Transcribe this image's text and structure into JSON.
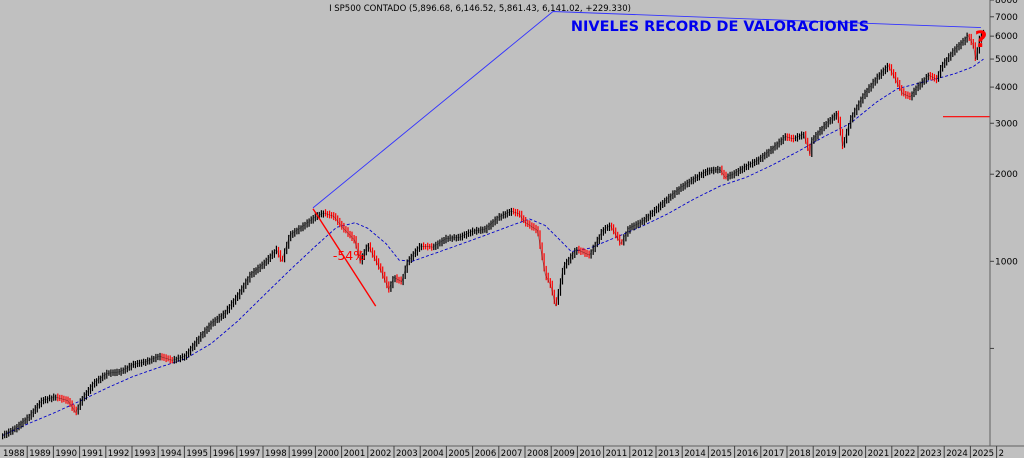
{
  "header": {
    "title": "I SP500 CONTADO (5,896.68, 6,146.52, 5,861.43, 6,141.02, +229.330)"
  },
  "annotations": {
    "headline": "NIVELES RECORD DE VALORACIONES",
    "drawdown": "-54%",
    "question": "?"
  },
  "colors": {
    "background": "#c0c0c0",
    "up_bar": "#000000",
    "down_bar": "#ff0000",
    "moving_average": "#0000cc",
    "trendline": "#3333ff",
    "headline": "#0000ee",
    "annotation_red": "#ff0000"
  },
  "chart_data": {
    "type": "line",
    "title": "I SP500 CONTADO",
    "y_scale": "log",
    "ylim": [
      230,
      8000
    ],
    "xlim": [
      1987.9,
      2025.85
    ],
    "y_ticks": [
      {
        "value": 8000,
        "label": "8000"
      },
      {
        "value": 7000,
        "label": "7000"
      },
      {
        "value": 6000,
        "label": "6000"
      },
      {
        "value": 5000,
        "label": "5000"
      },
      {
        "value": 4000,
        "label": "4000"
      },
      {
        "value": 3000,
        "label": "3000"
      },
      {
        "value": 2000,
        "label": "2000"
      },
      {
        "value": 1000,
        "label": "1000"
      },
      {
        "value": 500,
        "label": ""
      }
    ],
    "x_ticks": [
      "1988",
      "1989",
      "1990",
      "1991",
      "1992",
      "1993",
      "1994",
      "1995",
      "1996",
      "1997",
      "1998",
      "1999",
      "2000",
      "2001",
      "2002",
      "2003",
      "2004",
      "2005",
      "2006",
      "2007",
      "2008",
      "2009",
      "2010",
      "2011",
      "2012",
      "2013",
      "2014",
      "2015",
      "2016",
      "2017",
      "2018",
      "2019",
      "2020",
      "2021",
      "2022",
      "2023",
      "2024",
      "2025",
      "2"
    ],
    "series": [
      {
        "name": "",
        "style": "candles",
        "x": [
          1988.0,
          1988.5,
          1989.0,
          1989.5,
          1990.0,
          1990.5,
          1990.8,
          1991.0,
          1991.5,
          1992.0,
          1992.5,
          1993.0,
          1993.5,
          1994.0,
          1994.5,
          1995.0,
          1995.5,
          1996.0,
          1996.5,
          1997.0,
          1997.5,
          1998.0,
          1998.5,
          1998.7,
          1999.0,
          1999.5,
          2000.0,
          2000.3,
          2000.7,
          2001.0,
          2001.5,
          2001.7,
          2002.0,
          2002.5,
          2002.8,
          2003.0,
          2003.3,
          2003.5,
          2004.0,
          2004.5,
          2005.0,
          2005.5,
          2006.0,
          2006.5,
          2007.0,
          2007.5,
          2007.8,
          2008.0,
          2008.5,
          2008.8,
          2009.0,
          2009.2,
          2009.5,
          2010.0,
          2010.5,
          2011.0,
          2011.3,
          2011.7,
          2012.0,
          2012.5,
          2013.0,
          2013.5,
          2014.0,
          2014.5,
          2015.0,
          2015.5,
          2015.7,
          2016.0,
          2016.5,
          2017.0,
          2017.5,
          2018.0,
          2018.3,
          2018.7,
          2018.95,
          2019.0,
          2019.5,
          2020.0,
          2020.2,
          2020.5,
          2021.0,
          2021.5,
          2021.95,
          2022.2,
          2022.5,
          2022.8,
          2023.0,
          2023.5,
          2023.8,
          2024.0,
          2024.5,
          2024.9,
          2025.0,
          2025.2,
          2025.3,
          2025.45,
          2025.6
        ],
        "y": [
          250,
          265,
          290,
          330,
          340,
          330,
          300,
          330,
          380,
          410,
          415,
          440,
          450,
          470,
          455,
          470,
          540,
          610,
          660,
          760,
          900,
          980,
          1100,
          1000,
          1230,
          1320,
          1430,
          1470,
          1430,
          1320,
          1180,
          1000,
          1140,
          930,
          800,
          880,
          850,
          990,
          1130,
          1120,
          1200,
          1210,
          1270,
          1290,
          1420,
          1490,
          1460,
          1370,
          1280,
          900,
          830,
          700,
          960,
          1100,
          1050,
          1280,
          1330,
          1150,
          1300,
          1370,
          1500,
          1650,
          1800,
          1930,
          2050,
          2080,
          1950,
          2000,
          2130,
          2250,
          2450,
          2700,
          2650,
          2750,
          2350,
          2600,
          2950,
          3250,
          2500,
          3100,
          3750,
          4300,
          4750,
          4300,
          3800,
          3700,
          3950,
          4400,
          4250,
          4750,
          5400,
          5850,
          6050,
          5600,
          5000,
          5900,
          6141
        ]
      },
      {
        "name": "",
        "style": "dashed",
        "x": [
          1988.0,
          1989.0,
          1990.0,
          1991.0,
          1992.0,
          1993.0,
          1994.0,
          1995.0,
          1996.0,
          1997.0,
          1998.0,
          1999.0,
          2000.0,
          2000.8,
          2001.5,
          2002.0,
          2002.7,
          2003.2,
          2003.7,
          2004.5,
          2005.5,
          2006.5,
          2007.5,
          2008.2,
          2008.8,
          2009.3,
          2009.8,
          2010.5,
          2011.5,
          2012.5,
          2013.5,
          2014.5,
          2015.5,
          2016.5,
          2017.5,
          2018.5,
          2019.5,
          2020.5,
          2021.5,
          2022.3,
          2023.0,
          2023.7,
          2024.5,
          2025.2,
          2025.6
        ],
        "y": [
          250,
          275,
          300,
          330,
          365,
          400,
          430,
          460,
          520,
          620,
          760,
          930,
          1130,
          1310,
          1360,
          1300,
          1150,
          1010,
          1000,
          1060,
          1140,
          1230,
          1330,
          1400,
          1330,
          1200,
          1080,
          1110,
          1210,
          1320,
          1460,
          1640,
          1820,
          1950,
          2150,
          2400,
          2700,
          3000,
          3550,
          3950,
          4100,
          4250,
          4450,
          4700,
          5000
        ]
      },
      {
        "name": "",
        "style": "segment",
        "x": [
          1999.9,
          2002.3
        ],
        "y": [
          1520,
          700
        ]
      },
      {
        "name": "",
        "style": "trend",
        "x": [
          1999.9,
          2009.1,
          2025.5
        ],
        "y": [
          1530,
          7300,
          6420
        ]
      },
      {
        "name": "",
        "style": "level",
        "x": [
          2024.05,
          2025.85
        ],
        "y": [
          3160,
          3160
        ]
      }
    ]
  }
}
